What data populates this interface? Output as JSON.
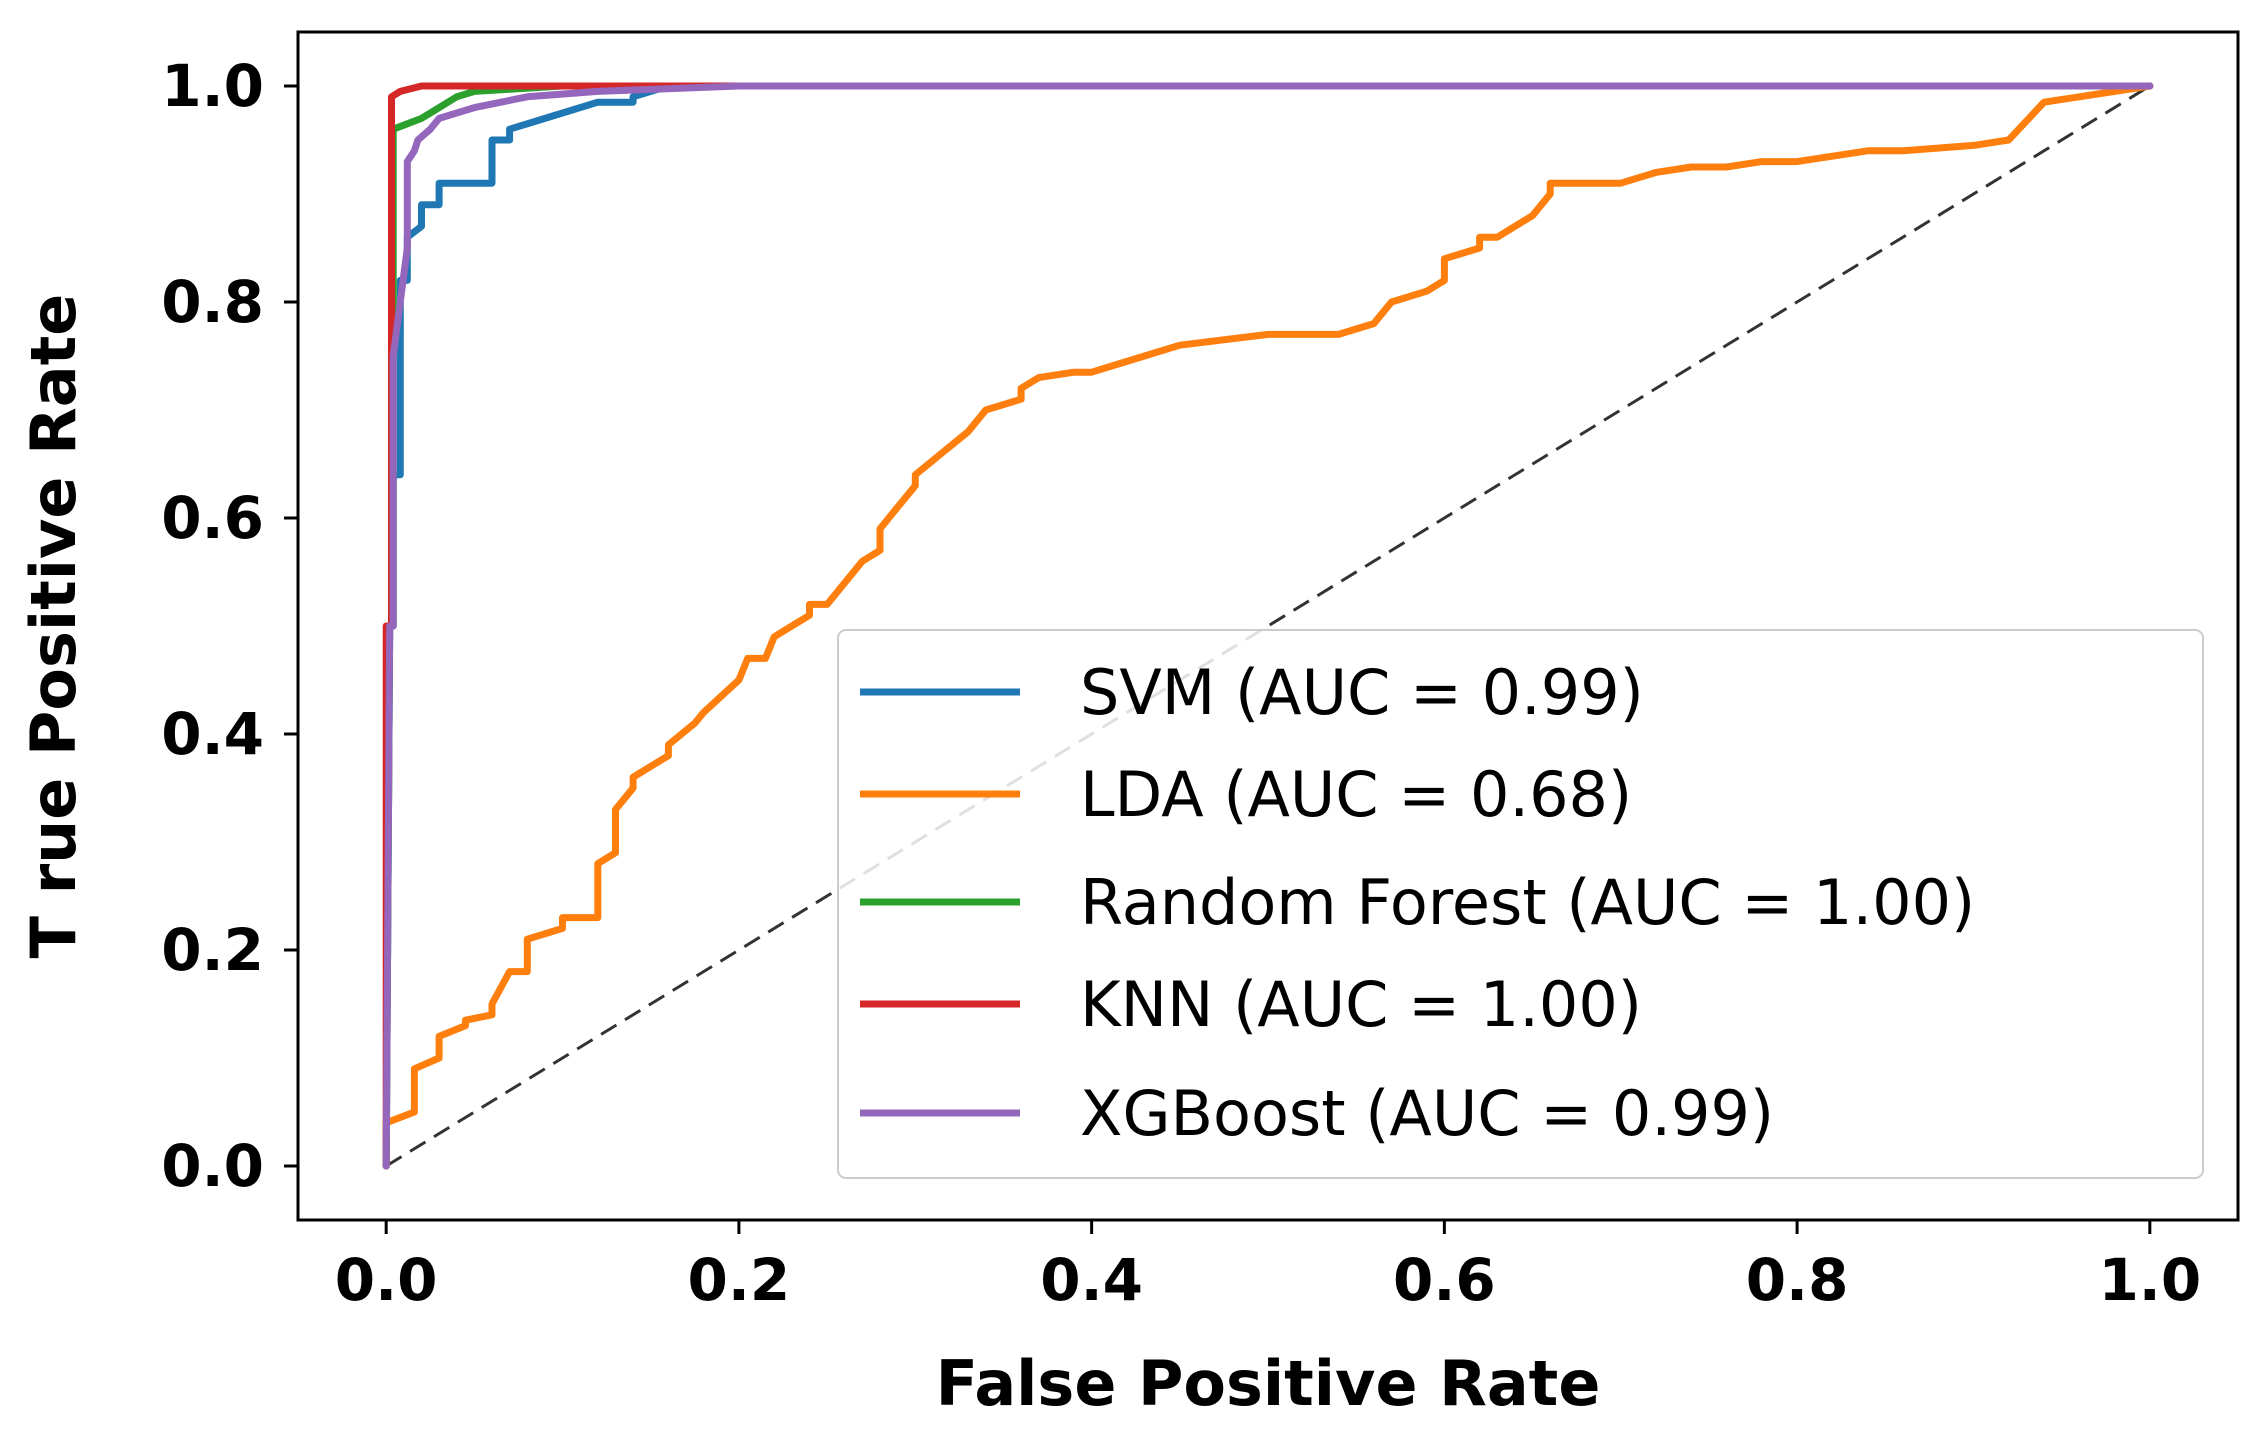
{
  "chart_data": {
    "type": "line",
    "title": "",
    "xlabel": "False Positive Rate",
    "ylabel": "T rue Positive Rate",
    "xlim": [
      -0.05,
      1.05
    ],
    "ylim": [
      -0.05,
      1.05
    ],
    "xticks": [
      0.0,
      0.2,
      0.4,
      0.6,
      0.8,
      1.0
    ],
    "xtick_labels": [
      "0.0",
      "0.2",
      "0.4",
      "0.6",
      "0.8",
      "1.0"
    ],
    "yticks": [
      0.0,
      0.2,
      0.4,
      0.6,
      0.8,
      1.0
    ],
    "ytick_labels": [
      "0.0",
      "0.2",
      "0.4",
      "0.6",
      "0.8",
      "1.0"
    ],
    "grid": false,
    "legend_position": "lower-right",
    "diagonal_reference": {
      "x": [
        0,
        1
      ],
      "y": [
        0,
        1
      ],
      "style": "dashed",
      "color": "#333333"
    },
    "series": [
      {
        "name": "SVM (AUC = 0.99)",
        "color": "#1f77b4",
        "x": [
          0.0,
          0.002,
          0.004,
          0.004,
          0.008,
          0.008,
          0.012,
          0.012,
          0.02,
          0.02,
          0.03,
          0.03,
          0.06,
          0.06,
          0.07,
          0.07,
          0.09,
          0.1,
          0.12,
          0.14,
          0.14,
          0.16,
          0.3,
          1.0
        ],
        "y": [
          0.0,
          0.5,
          0.5,
          0.64,
          0.64,
          0.82,
          0.82,
          0.86,
          0.87,
          0.89,
          0.89,
          0.91,
          0.91,
          0.95,
          0.95,
          0.96,
          0.97,
          0.975,
          0.985,
          0.985,
          0.99,
          1.0,
          1.0,
          1.0
        ]
      },
      {
        "name": "LDA (AUC = 0.68)",
        "color": "#ff7f0e",
        "x": [
          0.0,
          0.0,
          0.016,
          0.016,
          0.03,
          0.03,
          0.045,
          0.045,
          0.06,
          0.06,
          0.07,
          0.075,
          0.08,
          0.08,
          0.1,
          0.1,
          0.12,
          0.12,
          0.13,
          0.13,
          0.14,
          0.14,
          0.16,
          0.16,
          0.175,
          0.18,
          0.2,
          0.205,
          0.215,
          0.22,
          0.23,
          0.24,
          0.24,
          0.25,
          0.26,
          0.27,
          0.28,
          0.28,
          0.29,
          0.3,
          0.3,
          0.315,
          0.33,
          0.34,
          0.36,
          0.36,
          0.37,
          0.39,
          0.4,
          0.42,
          0.45,
          0.5,
          0.54,
          0.56,
          0.57,
          0.59,
          0.6,
          0.6,
          0.62,
          0.62,
          0.63,
          0.64,
          0.65,
          0.66,
          0.66,
          0.7,
          0.72,
          0.74,
          0.76,
          0.78,
          0.8,
          0.84,
          0.86,
          0.9,
          0.92,
          0.94,
          0.96,
          1.0
        ],
        "y": [
          0.0,
          0.04,
          0.05,
          0.09,
          0.1,
          0.12,
          0.13,
          0.135,
          0.14,
          0.15,
          0.18,
          0.18,
          0.18,
          0.21,
          0.22,
          0.23,
          0.23,
          0.28,
          0.29,
          0.33,
          0.35,
          0.36,
          0.38,
          0.39,
          0.41,
          0.42,
          0.45,
          0.47,
          0.47,
          0.49,
          0.5,
          0.51,
          0.52,
          0.52,
          0.54,
          0.56,
          0.57,
          0.59,
          0.61,
          0.63,
          0.64,
          0.66,
          0.68,
          0.7,
          0.71,
          0.72,
          0.73,
          0.735,
          0.735,
          0.745,
          0.76,
          0.77,
          0.77,
          0.78,
          0.8,
          0.81,
          0.82,
          0.84,
          0.85,
          0.86,
          0.86,
          0.87,
          0.88,
          0.9,
          0.91,
          0.91,
          0.92,
          0.925,
          0.925,
          0.93,
          0.93,
          0.94,
          0.94,
          0.945,
          0.95,
          0.985,
          0.99,
          1.0
        ]
      },
      {
        "name": "Random Forest (AUC = 1.00)",
        "color": "#2ca02c",
        "x": [
          0.0,
          0.002,
          0.004,
          0.004,
          0.02,
          0.03,
          0.04,
          0.05,
          0.1,
          1.0
        ],
        "y": [
          0.0,
          0.5,
          0.5,
          0.96,
          0.97,
          0.98,
          0.99,
          0.995,
          1.0,
          1.0
        ]
      },
      {
        "name": "KNN (AUC = 1.00)",
        "color": "#d62728",
        "x": [
          0.0,
          0.0,
          0.003,
          0.003,
          0.008,
          0.02,
          1.0
        ],
        "y": [
          0.0,
          0.5,
          0.5,
          0.99,
          0.995,
          1.0,
          1.0
        ]
      },
      {
        "name": "XGBoost (AUC = 0.99)",
        "color": "#9467bd",
        "x": [
          0.0,
          0.002,
          0.004,
          0.004,
          0.012,
          0.012,
          0.016,
          0.018,
          0.025,
          0.03,
          0.04,
          0.05,
          0.08,
          0.12,
          0.2,
          1.0
        ],
        "y": [
          0.0,
          0.5,
          0.5,
          0.75,
          0.85,
          0.93,
          0.94,
          0.95,
          0.96,
          0.97,
          0.975,
          0.98,
          0.99,
          0.995,
          1.0,
          1.0
        ]
      }
    ]
  }
}
